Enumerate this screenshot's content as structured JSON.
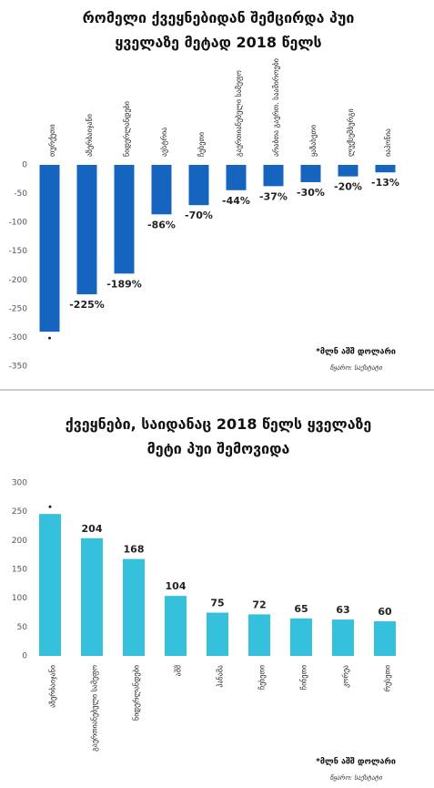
{
  "chart_data": [
    {
      "type": "bar",
      "title": "რომელი ქვეყნებიდან შემცირდა პუი ყველაზე მეტად 2018 წელს",
      "categories": [
        "თურქეთი",
        "აზერბაიჯანი",
        "ნიდერლანდები",
        "ავსტრია",
        "ჩეხეთი",
        "გაერთიანებული სამეფო",
        "არაბთა გაერთ. საამიროები",
        "ყაზახეთი",
        "ლუქსემბურგი",
        "იაპონია"
      ],
      "values": [
        -290,
        -225,
        -189,
        -86,
        -70,
        -44,
        -37,
        -30,
        -20,
        -13
      ],
      "value_labels": [
        null,
        "-225%",
        "-189%",
        "-86%",
        "-70%",
        "-44%",
        "-37%",
        "-30%",
        "-20%",
        "-13%"
      ],
      "color": "#1565c0",
      "ylim": [
        -350,
        0
      ],
      "yticks": [
        0,
        -50,
        -100,
        -150,
        -200,
        -250,
        -300,
        -350
      ],
      "grid": false,
      "note": "*მლნ აშშ დოლარი",
      "source": "წყარო: საქსტატი"
    },
    {
      "type": "bar",
      "title": "ქვეყნები, საიდანაც 2018 წელს ყველაზე მეტი პუი შემოვიდა",
      "categories": [
        "აზერბაიჯანი",
        "გაერთიანებული სამეფო",
        "ნიდერლანდები",
        "აშშ",
        "პანამა",
        "ჩეხეთი",
        "ჩინეთი",
        "კორეა",
        "რუსეთი"
      ],
      "values": [
        246,
        204,
        168,
        104,
        75,
        72,
        65,
        63,
        60
      ],
      "value_labels": [
        null,
        "204",
        "168",
        "104",
        "75",
        "72",
        "65",
        "63",
        "60"
      ],
      "color": "#35c0dc",
      "ylim": [
        0,
        300
      ],
      "yticks": [
        0,
        50,
        100,
        150,
        200,
        250,
        300
      ],
      "grid": false,
      "note": "*მლნ აშშ დოლარი",
      "source": "წყარო: საქსტატი"
    }
  ]
}
